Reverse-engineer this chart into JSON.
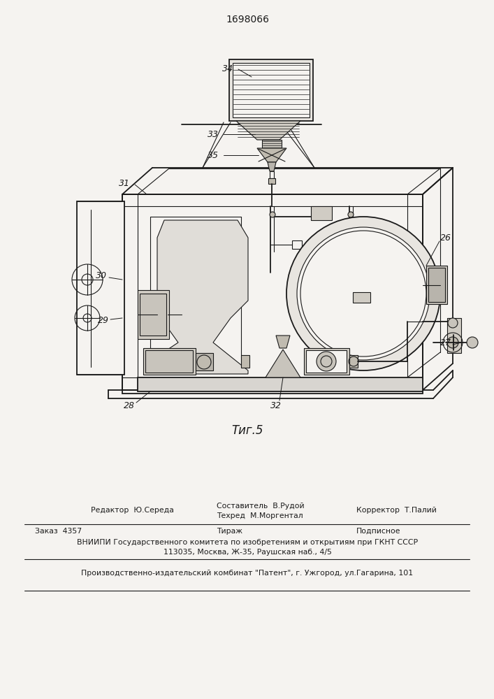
{
  "patent_number": "1698066",
  "figure_label": "Τиг.5",
  "bg_color": "#f5f3f0",
  "lc": "#1a1a1a",
  "footer": {
    "editor_label": "Редактор",
    "editor_name": "Ю.Середа",
    "composer_label": "Составитель",
    "composer_name": "В.Рудой",
    "techred_label": "Техред",
    "techred_name": "М.Моргентал",
    "corrector_label": "Корректор",
    "corrector_name": "Т.Палий",
    "order_label": "Заказ",
    "order_number": "4357",
    "tirage_label": "Тираж",
    "podpisnoe_label": "Подписное",
    "vniiipi_line1": "ВНИИПИ Государственного комитета по изобретениям и открытиям при ГКНТ СССР",
    "vniiipi_line2": "113035, Москва, Ж-35, Раушская наб., 4/5",
    "producer_text": "Производственно-издательский комбинат \"Патент\", г. Ужгород, ул.Гагарина, 101"
  }
}
